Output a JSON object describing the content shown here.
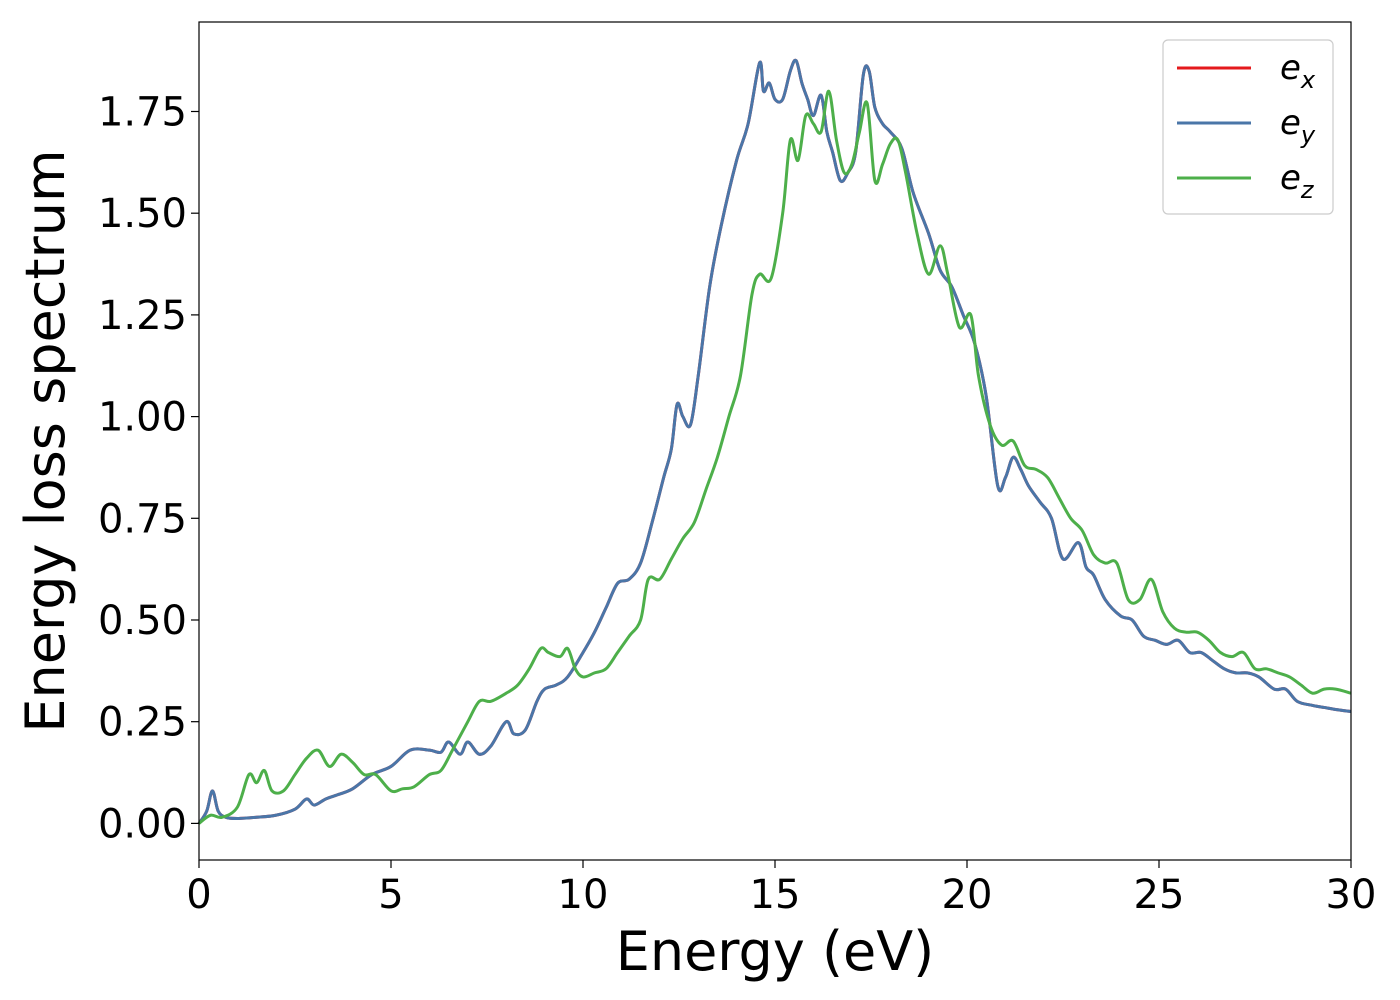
{
  "chart_data": {
    "type": "line",
    "xlabel": "Energy (eV)",
    "ylabel": "Energy loss spectrum",
    "xlim": [
      0,
      30
    ],
    "ylim": [
      -0.09,
      1.97
    ],
    "xticks": [
      0,
      5,
      10,
      15,
      20,
      25,
      30
    ],
    "xtick_labels": [
      "0",
      "5",
      "10",
      "15",
      "20",
      "25",
      "30"
    ],
    "yticks": [
      0,
      0.25,
      0.5,
      0.75,
      1.0,
      1.25,
      1.5,
      1.75
    ],
    "ytick_labels": [
      "0.00",
      "0.25",
      "0.50",
      "0.75",
      "1.00",
      "1.25",
      "1.50",
      "1.75"
    ],
    "grid": false,
    "legend_position": "top-right",
    "series": [
      {
        "name": "e_x",
        "legend": {
          "base": "e",
          "sub": "x"
        },
        "color": "#e41a1c",
        "x": [
          0,
          0.2,
          0.35,
          0.5,
          0.7,
          1,
          1.5,
          2,
          2.5,
          2.8,
          3,
          3.3,
          3.6,
          4,
          4.5,
          5,
          5.5,
          6,
          6.3,
          6.5,
          6.8,
          7,
          7.3,
          7.6,
          8,
          8.2,
          8.5,
          8.8,
          9,
          9.3,
          9.6,
          10,
          10.3,
          10.6,
          10.9,
          11.2,
          11.5,
          11.8,
          12.1,
          12.3,
          12.45,
          12.6,
          12.8,
          13,
          13.3,
          13.6,
          14,
          14.3,
          14.6,
          14.7,
          14.85,
          15,
          15.2,
          15.4,
          15.55,
          15.7,
          15.85,
          16,
          16.2,
          16.35,
          16.5,
          16.7,
          16.9,
          17.1,
          17.3,
          17.45,
          17.6,
          17.8,
          18,
          18.3,
          18.6,
          19,
          19.3,
          19.6,
          19.9,
          20.2,
          20.5,
          20.8,
          21,
          21.2,
          21.4,
          21.6,
          21.9,
          22.2,
          22.5,
          22.9,
          23.1,
          23.3,
          23.6,
          24,
          24.3,
          24.6,
          24.9,
          25.2,
          25.5,
          25.8,
          26.1,
          26.4,
          26.7,
          27,
          27.3,
          27.6,
          28,
          28.3,
          28.6,
          29,
          29.3,
          29.6,
          30
        ],
        "values": [
          0,
          0.03,
          0.08,
          0.03,
          0.015,
          0.012,
          0.015,
          0.02,
          0.035,
          0.06,
          0.045,
          0.06,
          0.07,
          0.085,
          0.12,
          0.14,
          0.18,
          0.18,
          0.175,
          0.2,
          0.17,
          0.2,
          0.17,
          0.19,
          0.25,
          0.22,
          0.23,
          0.3,
          0.33,
          0.34,
          0.36,
          0.42,
          0.47,
          0.53,
          0.59,
          0.6,
          0.64,
          0.74,
          0.85,
          0.92,
          1.03,
          1.0,
          0.98,
          1.1,
          1.32,
          1.47,
          1.63,
          1.72,
          1.87,
          1.8,
          1.82,
          1.78,
          1.78,
          1.85,
          1.875,
          1.82,
          1.78,
          1.74,
          1.79,
          1.7,
          1.65,
          1.58,
          1.6,
          1.65,
          1.84,
          1.85,
          1.76,
          1.72,
          1.7,
          1.66,
          1.55,
          1.45,
          1.36,
          1.32,
          1.25,
          1.18,
          1.05,
          0.83,
          0.85,
          0.9,
          0.87,
          0.83,
          0.79,
          0.75,
          0.65,
          0.69,
          0.63,
          0.61,
          0.55,
          0.51,
          0.5,
          0.46,
          0.45,
          0.44,
          0.45,
          0.42,
          0.42,
          0.4,
          0.38,
          0.37,
          0.37,
          0.36,
          0.33,
          0.33,
          0.3,
          0.29,
          0.285,
          0.28,
          0.275
        ]
      },
      {
        "name": "e_y",
        "legend": {
          "base": "e",
          "sub": "y"
        },
        "color": "#4a76a8",
        "x": [
          0,
          0.2,
          0.35,
          0.5,
          0.7,
          1,
          1.5,
          2,
          2.5,
          2.8,
          3,
          3.3,
          3.6,
          4,
          4.5,
          5,
          5.5,
          6,
          6.3,
          6.5,
          6.8,
          7,
          7.3,
          7.6,
          8,
          8.2,
          8.5,
          8.8,
          9,
          9.3,
          9.6,
          10,
          10.3,
          10.6,
          10.9,
          11.2,
          11.5,
          11.8,
          12.1,
          12.3,
          12.45,
          12.6,
          12.8,
          13,
          13.3,
          13.6,
          14,
          14.3,
          14.6,
          14.7,
          14.85,
          15,
          15.2,
          15.4,
          15.55,
          15.7,
          15.85,
          16,
          16.2,
          16.35,
          16.5,
          16.7,
          16.9,
          17.1,
          17.3,
          17.45,
          17.6,
          17.8,
          18,
          18.3,
          18.6,
          19,
          19.3,
          19.6,
          19.9,
          20.2,
          20.5,
          20.8,
          21,
          21.2,
          21.4,
          21.6,
          21.9,
          22.2,
          22.5,
          22.9,
          23.1,
          23.3,
          23.6,
          24,
          24.3,
          24.6,
          24.9,
          25.2,
          25.5,
          25.8,
          26.1,
          26.4,
          26.7,
          27,
          27.3,
          27.6,
          28,
          28.3,
          28.6,
          29,
          29.3,
          29.6,
          30
        ],
        "values": [
          0,
          0.03,
          0.08,
          0.03,
          0.015,
          0.012,
          0.015,
          0.02,
          0.035,
          0.06,
          0.045,
          0.06,
          0.07,
          0.085,
          0.12,
          0.14,
          0.18,
          0.18,
          0.175,
          0.2,
          0.17,
          0.2,
          0.17,
          0.19,
          0.25,
          0.22,
          0.23,
          0.3,
          0.33,
          0.34,
          0.36,
          0.42,
          0.47,
          0.53,
          0.59,
          0.6,
          0.64,
          0.74,
          0.85,
          0.92,
          1.03,
          1.0,
          0.98,
          1.1,
          1.32,
          1.47,
          1.63,
          1.72,
          1.87,
          1.8,
          1.82,
          1.78,
          1.78,
          1.85,
          1.875,
          1.82,
          1.78,
          1.74,
          1.79,
          1.7,
          1.65,
          1.58,
          1.6,
          1.65,
          1.84,
          1.85,
          1.76,
          1.72,
          1.7,
          1.66,
          1.55,
          1.45,
          1.36,
          1.32,
          1.25,
          1.18,
          1.05,
          0.83,
          0.85,
          0.9,
          0.87,
          0.83,
          0.79,
          0.75,
          0.65,
          0.69,
          0.63,
          0.61,
          0.55,
          0.51,
          0.5,
          0.46,
          0.45,
          0.44,
          0.45,
          0.42,
          0.42,
          0.4,
          0.38,
          0.37,
          0.37,
          0.36,
          0.33,
          0.33,
          0.3,
          0.29,
          0.285,
          0.28,
          0.275
        ]
      },
      {
        "name": "e_z",
        "legend": {
          "base": "e",
          "sub": "z"
        },
        "color": "#4daf4a",
        "x": [
          0,
          0.3,
          0.6,
          1,
          1.3,
          1.5,
          1.7,
          1.9,
          2.2,
          2.5,
          2.8,
          3.1,
          3.4,
          3.7,
          4,
          4.3,
          4.6,
          5,
          5.3,
          5.6,
          6,
          6.3,
          6.6,
          7,
          7.3,
          7.6,
          8,
          8.3,
          8.6,
          8.9,
          9.1,
          9.4,
          9.6,
          9.8,
          10,
          10.3,
          10.6,
          10.9,
          11.2,
          11.5,
          11.7,
          12,
          12.3,
          12.6,
          12.9,
          13.2,
          13.5,
          13.8,
          14.1,
          14.4,
          14.6,
          14.9,
          15.2,
          15.4,
          15.6,
          15.8,
          16,
          16.2,
          16.4,
          16.6,
          16.8,
          17,
          17.2,
          17.4,
          17.6,
          17.8,
          18,
          18.2,
          18.4,
          18.7,
          19,
          19.3,
          19.5,
          19.8,
          20.1,
          20.3,
          20.6,
          20.9,
          21.2,
          21.5,
          21.8,
          22.1,
          22.4,
          22.7,
          23,
          23.3,
          23.6,
          23.9,
          24.2,
          24.5,
          24.8,
          25.1,
          25.4,
          25.7,
          26,
          26.3,
          26.6,
          26.9,
          27.2,
          27.5,
          27.8,
          28.1,
          28.4,
          28.7,
          29,
          29.3,
          29.6,
          30
        ],
        "values": [
          0,
          0.02,
          0.015,
          0.04,
          0.12,
          0.1,
          0.13,
          0.08,
          0.08,
          0.12,
          0.16,
          0.18,
          0.14,
          0.17,
          0.15,
          0.12,
          0.12,
          0.08,
          0.085,
          0.09,
          0.12,
          0.13,
          0.18,
          0.25,
          0.3,
          0.3,
          0.32,
          0.34,
          0.38,
          0.43,
          0.42,
          0.41,
          0.43,
          0.38,
          0.36,
          0.37,
          0.38,
          0.42,
          0.46,
          0.5,
          0.6,
          0.6,
          0.65,
          0.7,
          0.74,
          0.82,
          0.9,
          1.0,
          1.1,
          1.3,
          1.35,
          1.34,
          1.5,
          1.68,
          1.63,
          1.74,
          1.72,
          1.7,
          1.8,
          1.68,
          1.6,
          1.62,
          1.7,
          1.77,
          1.58,
          1.62,
          1.67,
          1.68,
          1.6,
          1.45,
          1.35,
          1.42,
          1.35,
          1.22,
          1.25,
          1.1,
          0.98,
          0.93,
          0.94,
          0.88,
          0.87,
          0.85,
          0.8,
          0.75,
          0.72,
          0.66,
          0.64,
          0.64,
          0.55,
          0.55,
          0.6,
          0.52,
          0.48,
          0.47,
          0.47,
          0.45,
          0.42,
          0.41,
          0.42,
          0.38,
          0.38,
          0.37,
          0.36,
          0.34,
          0.32,
          0.33,
          0.33,
          0.32
        ]
      }
    ]
  }
}
